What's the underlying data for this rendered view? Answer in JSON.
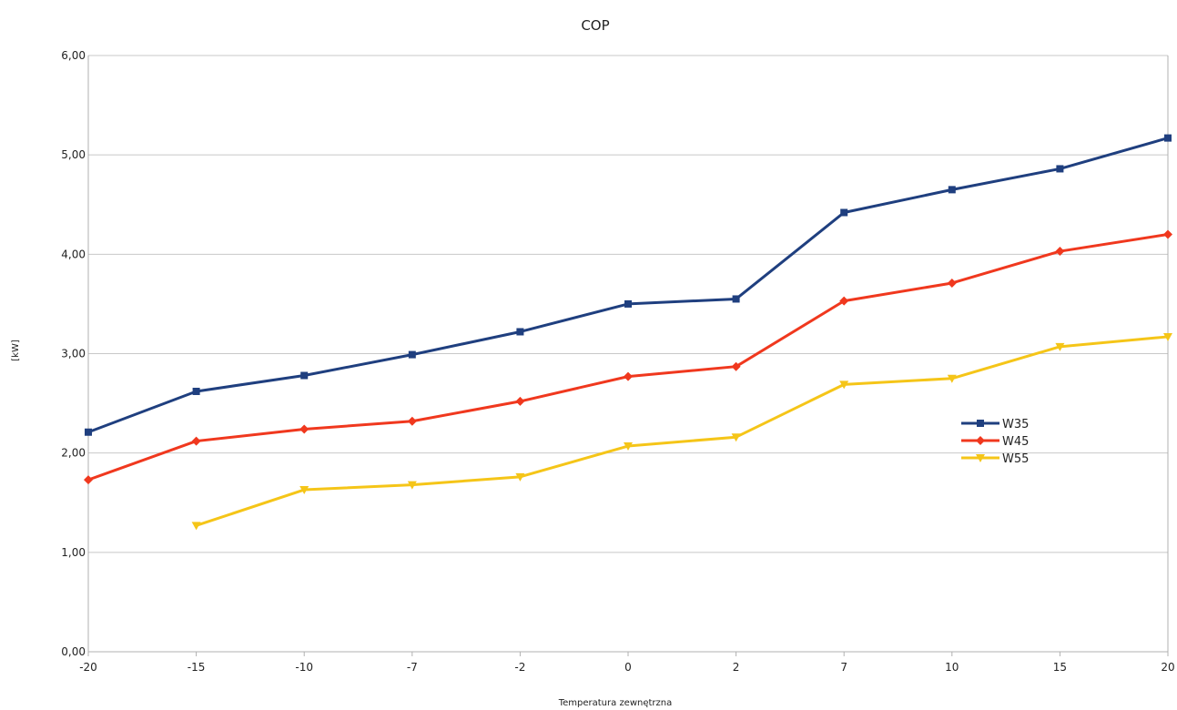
{
  "chart_data": {
    "type": "line",
    "title": "COP",
    "xlabel": "Temperatura zewnętrzna",
    "ylabel": "[kW]",
    "categories": [
      "-20",
      "-15",
      "-10",
      "-7",
      "-2",
      "0",
      "2",
      "7",
      "10",
      "15",
      "20"
    ],
    "ylim": [
      0,
      6
    ],
    "yticks": [
      "0,00",
      "1,00",
      "2,00",
      "3,00",
      "4,00",
      "5,00",
      "6,00"
    ],
    "grid": true,
    "legend_position": "right",
    "series": [
      {
        "name": "W35",
        "color": "#1f3f7f",
        "marker": "square",
        "values": [
          2.21,
          2.62,
          2.78,
          2.99,
          3.22,
          3.5,
          3.55,
          4.42,
          4.65,
          4.86,
          5.17
        ]
      },
      {
        "name": "W45",
        "color": "#f0381e",
        "marker": "diamond",
        "values": [
          1.73,
          2.12,
          2.24,
          2.32,
          2.52,
          2.77,
          2.87,
          3.53,
          3.71,
          4.03,
          4.2
        ]
      },
      {
        "name": "W55",
        "color": "#f5c518",
        "marker": "triangle-down",
        "values": [
          null,
          1.27,
          1.63,
          1.68,
          1.76,
          2.07,
          2.16,
          2.69,
          2.75,
          3.07,
          3.17
        ]
      }
    ]
  }
}
